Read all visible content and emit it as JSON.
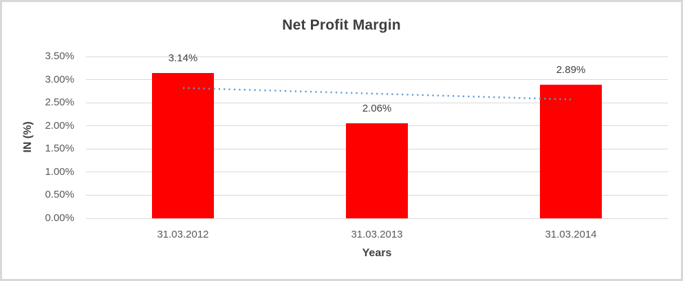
{
  "chart_data": {
    "type": "bar",
    "title": "Net Profit Margin",
    "xlabel": "Years",
    "ylabel": "IN (%)",
    "categories": [
      "31.03.2012",
      "31.03.2013",
      "31.03.2014"
    ],
    "values": [
      3.14,
      2.06,
      2.89
    ],
    "data_labels": [
      "3.14%",
      "2.06%",
      "2.89%"
    ],
    "ylim": [
      0,
      3.5
    ],
    "ytick_step": 0.5,
    "ytick_labels": [
      "0.00%",
      "0.50%",
      "1.00%",
      "1.50%",
      "2.00%",
      "2.50%",
      "3.00%",
      "3.50%"
    ],
    "grid": true,
    "legend": "none",
    "bar_color": "#FF0000",
    "trendline": {
      "type": "linear",
      "style": "dotted",
      "color": "#5B9BD5",
      "y_start": 2.82,
      "y_end": 2.57,
      "start_category_index": 0,
      "end_category_index": 2
    },
    "colors": {
      "title": "#3E3E3E",
      "axis_tick_labels": "#595959",
      "axis_titles": "#404040",
      "gridline": "#D9D9D9",
      "data_label": "#404040",
      "frame_border": "#D8D8D8",
      "background": "#FFFFFF"
    }
  }
}
